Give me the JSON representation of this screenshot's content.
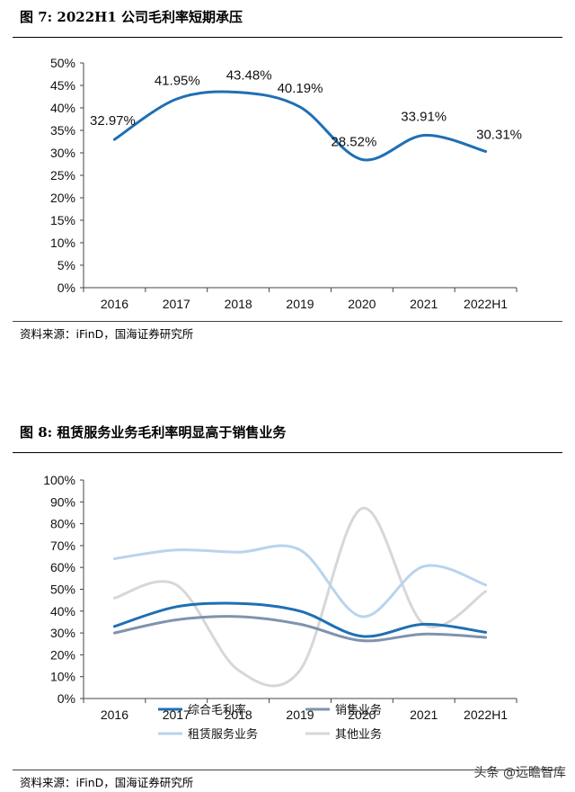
{
  "figure7": {
    "title": "图 7:  2022H1 公司毛利率短期承压",
    "source": "资料来源：iFinD，国海证券研究所"
  },
  "figure8": {
    "title": "图 8:  租赁服务业务毛利率明显高于销售业务",
    "source": "资料来源：iFinD，国海证券研究所"
  },
  "watermark": "头条 @远瞻智库",
  "chart_data": [
    {
      "type": "line",
      "categories": [
        "2016",
        "2017",
        "2018",
        "2019",
        "2020",
        "2021",
        "2022H1"
      ],
      "series": [
        {
          "values": [
            32.97,
            41.95,
            43.48,
            40.19,
            28.52,
            33.91,
            30.31
          ],
          "color": "#1f6fb4"
        }
      ],
      "data_labels": [
        "32.97%",
        "41.95%",
        "43.48%",
        "40.19%",
        "28.52%",
        "33.91%",
        "30.31%"
      ],
      "y_ticks": [
        "0%",
        "5%",
        "10%",
        "15%",
        "20%",
        "25%",
        "30%",
        "35%",
        "40%",
        "45%",
        "50%"
      ],
      "ylim": [
        0,
        50
      ],
      "grid": false,
      "smooth": true
    },
    {
      "type": "line",
      "categories": [
        "2016",
        "2017",
        "2018",
        "2019",
        "2020",
        "2021",
        "2022H1"
      ],
      "series": [
        {
          "name": "综合毛利率",
          "values": [
            33,
            42,
            43.5,
            40,
            28.5,
            34,
            30.3
          ],
          "color": "#1f6fb4"
        },
        {
          "name": "销售业务",
          "values": [
            30,
            36,
            37.5,
            34,
            26.5,
            29.5,
            28
          ],
          "color": "#7f93ad"
        },
        {
          "name": "租赁服务业务",
          "values": [
            64,
            68,
            67,
            68,
            37.5,
            60.5,
            52
          ],
          "color": "#b8d4ee"
        },
        {
          "name": "其他业务",
          "values": [
            46,
            52,
            13,
            13,
            87,
            34,
            49
          ],
          "color": "#d7d7d7"
        }
      ],
      "y_ticks": [
        "0%",
        "10%",
        "20%",
        "30%",
        "40%",
        "50%",
        "60%",
        "70%",
        "80%",
        "90%",
        "100%"
      ],
      "ylim": [
        0,
        100
      ],
      "grid": false,
      "smooth": true,
      "legend_position": "bottom"
    }
  ]
}
